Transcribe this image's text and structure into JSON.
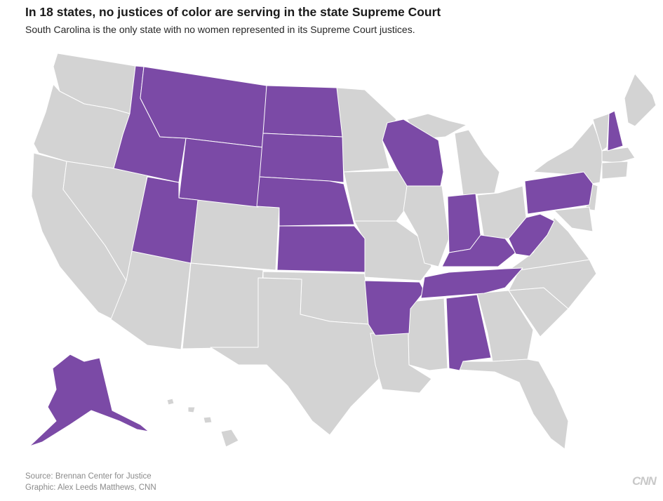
{
  "header": {
    "title": "In 18 states, no justices of color are serving in the state Supreme Court",
    "subtitle": "South Carolina is the only state with no women represented in its Supreme Court justices."
  },
  "legend_colors": {
    "highlighted": "#7b4aa6",
    "other": "#d3d3d3"
  },
  "highlighted_states": [
    "Alaska",
    "Idaho",
    "Montana",
    "Wyoming",
    "Utah",
    "North Dakota",
    "South Dakota",
    "Nebraska",
    "Kansas",
    "Arkansas",
    "Wisconsin",
    "Indiana",
    "Kentucky",
    "Tennessee",
    "Alabama",
    "West Virginia",
    "Pennsylvania",
    "New Hampshire"
  ],
  "footer": {
    "source": "Source: Brennan Center for Justice",
    "graphic": "Graphic: Alex Leeds Matthews, CNN",
    "logo": "CNN"
  }
}
